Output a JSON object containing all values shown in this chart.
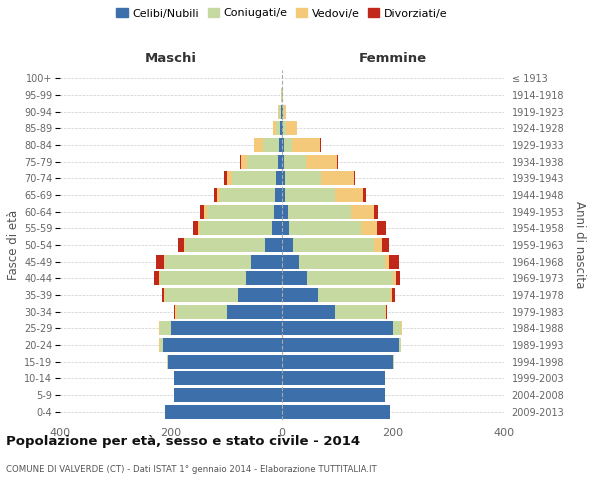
{
  "age_groups": [
    "0-4",
    "5-9",
    "10-14",
    "15-19",
    "20-24",
    "25-29",
    "30-34",
    "35-39",
    "40-44",
    "45-49",
    "50-54",
    "55-59",
    "60-64",
    "65-69",
    "70-74",
    "75-79",
    "80-84",
    "85-89",
    "90-94",
    "95-99",
    "100+"
  ],
  "birth_years": [
    "2009-2013",
    "2004-2008",
    "1999-2003",
    "1994-1998",
    "1989-1993",
    "1984-1988",
    "1979-1983",
    "1974-1978",
    "1969-1973",
    "1964-1968",
    "1959-1963",
    "1954-1958",
    "1949-1953",
    "1944-1948",
    "1939-1943",
    "1934-1938",
    "1929-1933",
    "1924-1928",
    "1919-1923",
    "1914-1918",
    "≤ 1913"
  ],
  "males": {
    "celibi": [
      210,
      195,
      195,
      205,
      215,
      200,
      100,
      80,
      65,
      55,
      30,
      18,
      15,
      12,
      10,
      8,
      5,
      3,
      2,
      0,
      0
    ],
    "coniugati": [
      0,
      0,
      0,
      2,
      5,
      20,
      90,
      130,
      155,
      155,
      145,
      130,
      120,
      100,
      80,
      55,
      30,
      8,
      3,
      1,
      0
    ],
    "vedovi": [
      0,
      0,
      0,
      0,
      2,
      2,
      2,
      2,
      2,
      2,
      2,
      3,
      5,
      5,
      10,
      10,
      15,
      5,
      2,
      0,
      0
    ],
    "divorziati": [
      0,
      0,
      0,
      0,
      0,
      0,
      2,
      5,
      8,
      15,
      10,
      10,
      8,
      5,
      5,
      2,
      0,
      0,
      1,
      0,
      0
    ]
  },
  "females": {
    "nubili": [
      195,
      185,
      185,
      200,
      210,
      200,
      95,
      65,
      45,
      30,
      20,
      12,
      10,
      6,
      5,
      4,
      3,
      2,
      1,
      0,
      0
    ],
    "coniugate": [
      0,
      0,
      0,
      2,
      5,
      15,
      90,
      130,
      155,
      155,
      145,
      130,
      115,
      90,
      65,
      40,
      15,
      5,
      2,
      0,
      0
    ],
    "vedove": [
      0,
      0,
      0,
      0,
      0,
      2,
      2,
      3,
      5,
      8,
      15,
      30,
      40,
      50,
      60,
      55,
      50,
      20,
      5,
      1,
      0
    ],
    "divorziate": [
      0,
      0,
      0,
      0,
      0,
      0,
      2,
      5,
      8,
      18,
      12,
      15,
      8,
      5,
      2,
      2,
      2,
      0,
      0,
      0,
      0
    ]
  },
  "colors": {
    "celibi_nubili": "#3d6faa",
    "coniugati": "#c5d9a0",
    "vedovi": "#f5c97a",
    "divorziati": "#c0291a"
  },
  "xlim": 400,
  "title": "Popolazione per età, sesso e stato civile - 2014",
  "subtitle": "COMUNE DI VALVERDE (CT) - Dati ISTAT 1° gennaio 2014 - Elaborazione TUTTITALIA.IT",
  "ylabel_left": "Fasce di età",
  "ylabel_right": "Anni di nascita",
  "header_maschi": "Maschi",
  "header_femmine": "Femmine",
  "legend_labels": [
    "Celibi/Nubili",
    "Coniugati/e",
    "Vedovi/e",
    "Divorziati/e"
  ]
}
